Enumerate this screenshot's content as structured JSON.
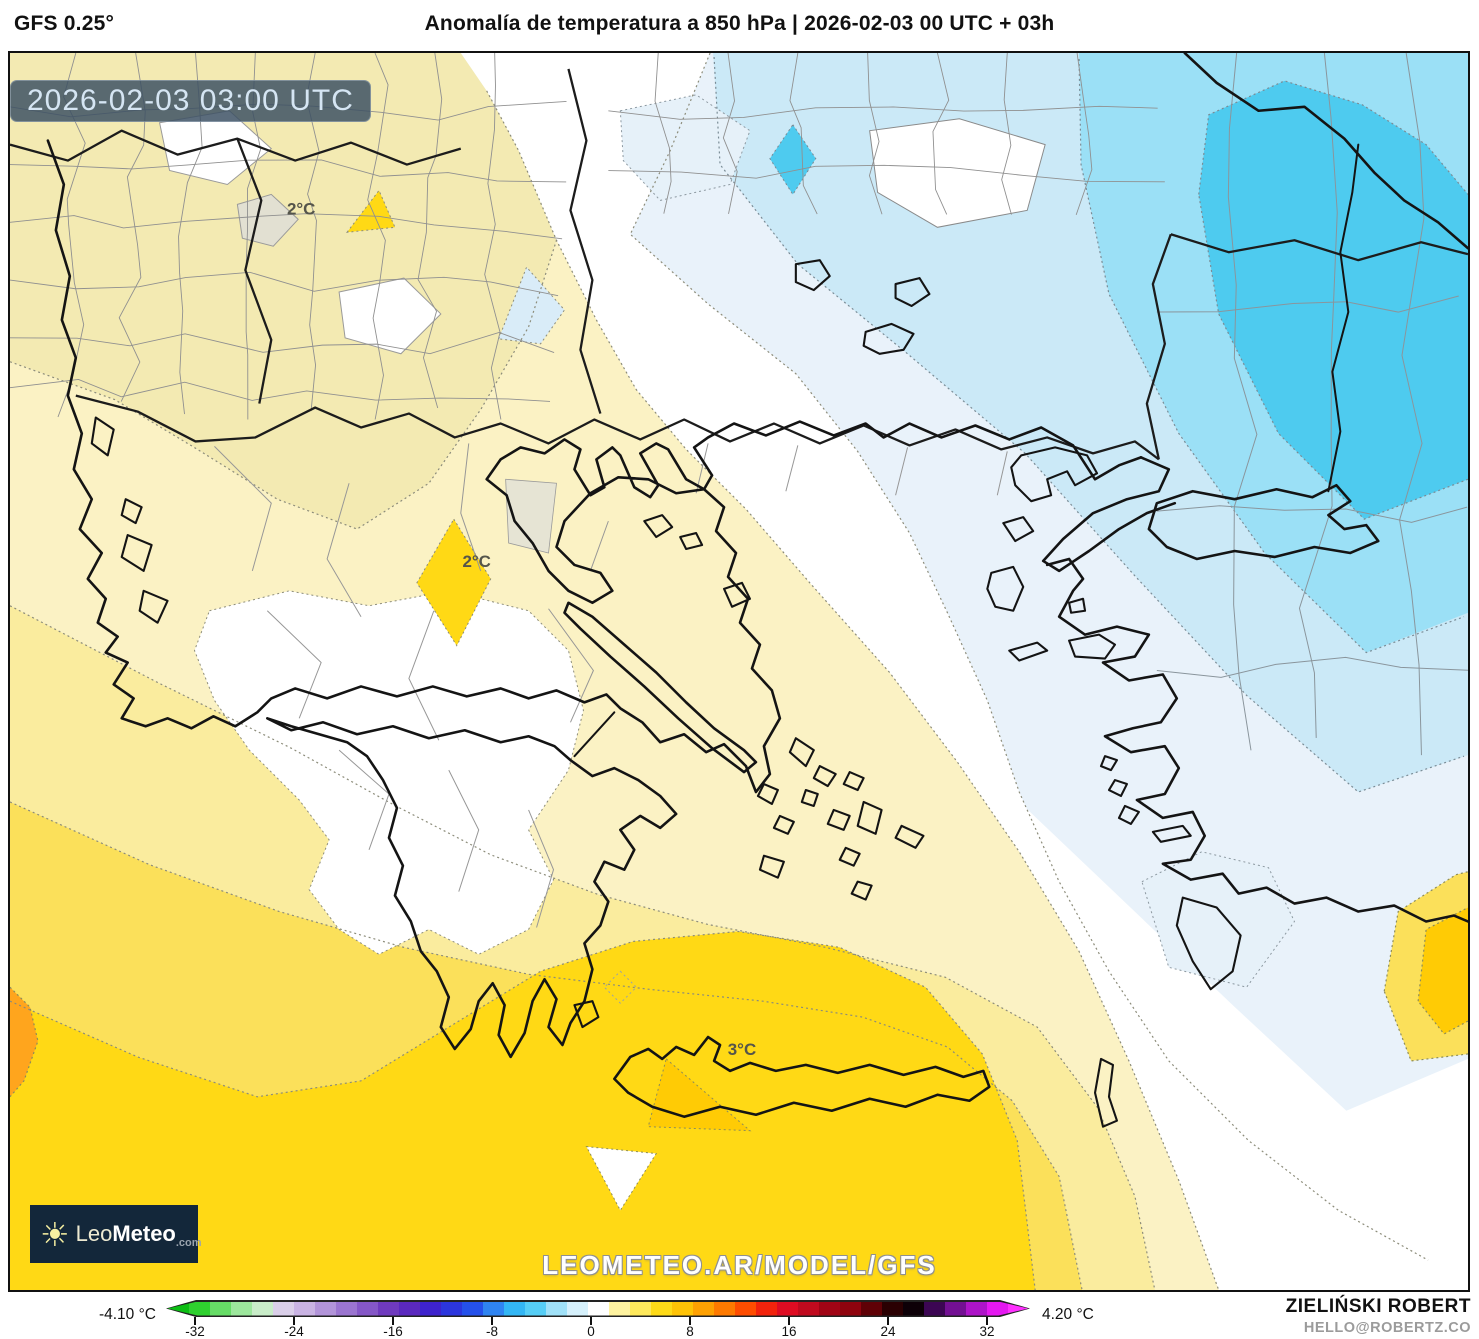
{
  "header": {
    "model": "GFS 0.25°",
    "title": "Anomalía de temperatura a 850 hPa | 2026-02-03 00 UTC + 03h"
  },
  "map": {
    "timestamp": "2026-02-03 03:00 UTC",
    "watermark": "LEOMETEO.AR/MODEL/GFS",
    "labels": {
      "north": "2°C",
      "thessaly": "2°C",
      "crete": "3°C"
    },
    "palette": {
      "pale_yellow_nw": "#F3EAB2",
      "pale_yellow": "#FBF2C4",
      "light_yellow": "#FAEC9E",
      "medium_yellow": "#FBE05A",
      "bright_yellow": "#FFD915",
      "deep_yellow": "#FFCB05",
      "orange": "#FFA51D",
      "pale_blue": "#E9F2FA",
      "light_blue": "#CBE9F7",
      "medium_cyan": "#9BE0F6",
      "deep_cyan": "#4ECBEF",
      "neutral_white": "#FFFFFF"
    }
  },
  "logo": {
    "brand_leo": "Leo",
    "brand_meteo": "Meteo",
    "brand_tld": ".com",
    "sun_icon": "sun"
  },
  "colorbar": {
    "min_label": "-4.10 °C",
    "max_label": "4.20 °C",
    "ticks": [
      -32,
      -24,
      -16,
      -8,
      0,
      8,
      16,
      24,
      32
    ],
    "colors": [
      "#0CBE13",
      "#2FD02F",
      "#66DC66",
      "#9DE79D",
      "#C9EDC9",
      "#DACFE9",
      "#C9B3E3",
      "#B294D9",
      "#9B75D0",
      "#8557C7",
      "#6F3ABE",
      "#5B29BF",
      "#3E23CD",
      "#2C36DE",
      "#2551EB",
      "#2F84F1",
      "#33B6F4",
      "#56CEF6",
      "#A0E1F8",
      "#D6F1FC",
      "#FFFFFF",
      "#FFF3A0",
      "#FFE95C",
      "#FFDB18",
      "#FFC306",
      "#FFA102",
      "#FF7A00",
      "#FF4D00",
      "#F2230C",
      "#DE0C22",
      "#C00A1E",
      "#A00415",
      "#8F030E",
      "#5F0106",
      "#2A0002",
      "#0D0007",
      "#3C0653",
      "#731093",
      "#AD14C8",
      "#E418F0",
      "#FF30FF"
    ]
  },
  "credits": {
    "author": "ZIELIŃSKI ROBERT",
    "email": "HELLO@ROBERTZ.CO"
  }
}
